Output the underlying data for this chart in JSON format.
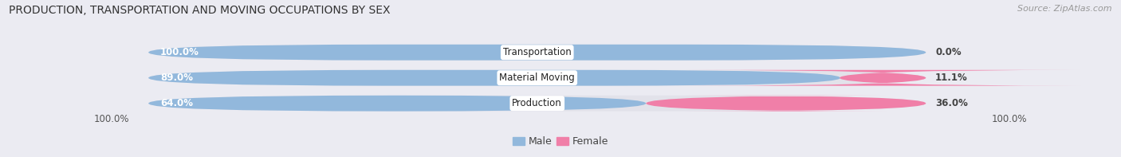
{
  "title": "PRODUCTION, TRANSPORTATION AND MOVING OCCUPATIONS BY SEX",
  "source": "Source: ZipAtlas.com",
  "categories": [
    "Transportation",
    "Material Moving",
    "Production"
  ],
  "male_pct": [
    100.0,
    89.0,
    64.0
  ],
  "female_pct": [
    0.0,
    11.1,
    36.0
  ],
  "male_color": "#92b8dc",
  "female_color": "#f07fa8",
  "bar_bg_color": "#e2e2ea",
  "bg_color": "#ebebf2",
  "title_fontsize": 10,
  "source_fontsize": 8,
  "bar_height": 0.62,
  "figsize": [
    14.06,
    1.97
  ],
  "dpi": 100,
  "footer_label": "100.0%",
  "bar_xleft": 0.06,
  "bar_xright": 0.94
}
